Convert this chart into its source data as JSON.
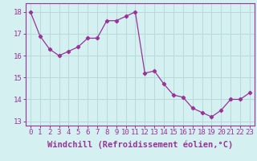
{
  "x": [
    0,
    1,
    2,
    3,
    4,
    5,
    6,
    7,
    8,
    9,
    10,
    11,
    12,
    13,
    14,
    15,
    16,
    17,
    18,
    19,
    20,
    21,
    22,
    23
  ],
  "y": [
    18.0,
    16.9,
    16.3,
    16.0,
    16.2,
    16.4,
    16.8,
    16.8,
    17.6,
    17.6,
    17.8,
    18.0,
    15.2,
    15.3,
    14.7,
    14.2,
    14.1,
    13.6,
    13.4,
    13.2,
    13.5,
    14.0,
    14.0,
    14.3
  ],
  "line_color": "#993399",
  "marker": "D",
  "marker_size": 2.2,
  "background_color": "#d4f0f0",
  "grid_color": "#b8dada",
  "xlabel": "Windchill (Refroidissement éolien,°C)",
  "xlabel_fontsize": 7.5,
  "tick_fontsize": 6.5,
  "ylim": [
    12.8,
    18.4
  ],
  "xlim": [
    -0.5,
    23.5
  ],
  "yticks": [
    13,
    14,
    15,
    16,
    17,
    18
  ],
  "xtick_labels": [
    "0",
    "1",
    "2",
    "3",
    "4",
    "5",
    "6",
    "7",
    "8",
    "9",
    "10",
    "11",
    "12",
    "13",
    "14",
    "15",
    "16",
    "17",
    "18",
    "19",
    "20",
    "21",
    "22",
    "23"
  ]
}
